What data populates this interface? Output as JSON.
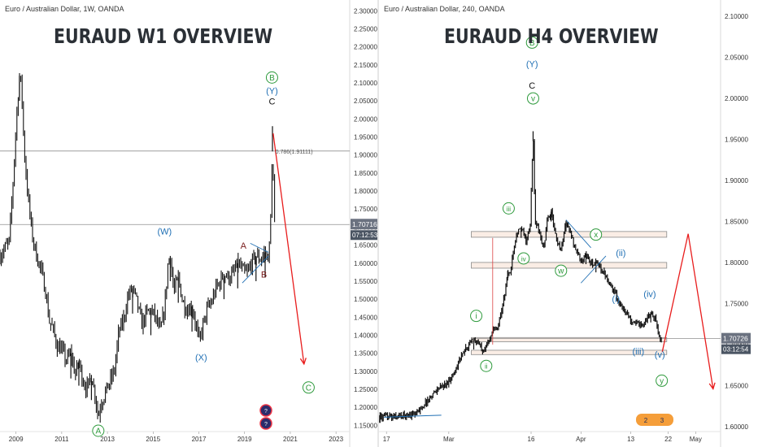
{
  "charts": [
    {
      "source": "Euro / Australian Dollar, 1W, OANDA",
      "heading": "EURAUD W1 OVERVIEW",
      "price_tag": "1.70716",
      "countdown": "07:12:53",
      "fib_label": "0.786(1.91111)",
      "corner_badges": [
        "?",
        "?"
      ]
    },
    {
      "source": "Euro / Australian Dollar, 240, OANDA",
      "heading": "EURAUD H4 OVERVIEW",
      "price_tag": "1.70726",
      "countdown": "03:12:54",
      "corner_badges": [
        "2",
        "3"
      ]
    }
  ],
  "chart_data": [
    {
      "type": "line",
      "title": "Euro / Australian Dollar, 1W, OANDA",
      "xlabel": "",
      "ylabel": "",
      "x_ticks": [
        "2009",
        "2011",
        "2013",
        "2015",
        "2017",
        "2019",
        "2021",
        "2023"
      ],
      "y_ticks": [
        2.3,
        2.25,
        2.2,
        2.15,
        2.1,
        2.05,
        2.0,
        1.95,
        1.9,
        1.85,
        1.8,
        1.75,
        1.7,
        1.65,
        1.6,
        1.55,
        1.5,
        1.45,
        1.4,
        1.35,
        1.3,
        1.25,
        1.2,
        1.15
      ],
      "xlim": [
        2008.3,
        2023.6
      ],
      "ylim": [
        1.135,
        2.312
      ],
      "grid": false,
      "series": [
        {
          "values": [
            [
              2008.3,
              1.62
            ],
            [
              2008.5,
              1.64
            ],
            [
              2008.7,
              1.66
            ],
            [
              2008.85,
              1.8
            ],
            [
              2009.0,
              1.98
            ],
            [
              2009.15,
              2.12
            ],
            [
              2009.25,
              2.08
            ],
            [
              2009.35,
              1.92
            ],
            [
              2009.5,
              1.8
            ],
            [
              2009.7,
              1.68
            ],
            [
              2009.9,
              1.62
            ],
            [
              2010.1,
              1.58
            ],
            [
              2010.3,
              1.52
            ],
            [
              2010.45,
              1.44
            ],
            [
              2010.6,
              1.42
            ],
            [
              2010.8,
              1.37
            ],
            [
              2011.0,
              1.36
            ],
            [
              2011.2,
              1.33
            ],
            [
              2011.4,
              1.35
            ],
            [
              2011.6,
              1.29
            ],
            [
              2011.75,
              1.33
            ],
            [
              2011.9,
              1.28
            ],
            [
              2012.1,
              1.25
            ],
            [
              2012.3,
              1.29
            ],
            [
              2012.5,
              1.22
            ],
            [
              2012.6,
              1.17
            ],
            [
              2012.7,
              1.21
            ],
            [
              2012.9,
              1.24
            ],
            [
              2013.1,
              1.27
            ],
            [
              2013.3,
              1.3
            ],
            [
              2013.5,
              1.41
            ],
            [
              2013.7,
              1.44
            ],
            [
              2013.9,
              1.51
            ],
            [
              2014.1,
              1.53
            ],
            [
              2014.3,
              1.49
            ],
            [
              2014.5,
              1.43
            ],
            [
              2014.7,
              1.46
            ],
            [
              2014.9,
              1.47
            ],
            [
              2015.1,
              1.45
            ],
            [
              2015.3,
              1.41
            ],
            [
              2015.5,
              1.47
            ],
            [
              2015.65,
              1.6
            ],
            [
              2015.75,
              1.62
            ],
            [
              2015.9,
              1.52
            ],
            [
              2016.1,
              1.56
            ],
            [
              2016.3,
              1.49
            ],
            [
              2016.5,
              1.47
            ],
            [
              2016.7,
              1.48
            ],
            [
              2016.9,
              1.42
            ],
            [
              2017.0,
              1.38
            ],
            [
              2017.15,
              1.42
            ],
            [
              2017.35,
              1.47
            ],
            [
              2017.55,
              1.49
            ],
            [
              2017.75,
              1.53
            ],
            [
              2017.95,
              1.55
            ],
            [
              2018.1,
              1.57
            ],
            [
              2018.3,
              1.56
            ],
            [
              2018.5,
              1.57
            ],
            [
              2018.7,
              1.6
            ],
            [
              2018.9,
              1.58
            ],
            [
              2019.1,
              1.57
            ],
            [
              2019.3,
              1.6
            ],
            [
              2019.5,
              1.62
            ],
            [
              2019.7,
              1.61
            ],
            [
              2019.9,
              1.63
            ],
            [
              2020.0,
              1.61
            ],
            [
              2020.08,
              1.64
            ],
            [
              2020.13,
              1.71
            ],
            [
              2020.18,
              1.78
            ],
            [
              2020.22,
              1.98
            ],
            [
              2020.27,
              1.76
            ],
            [
              2020.32,
              1.71
            ]
          ]
        }
      ],
      "hlines": [
        1.9111,
        1.70716
      ],
      "annotations": [
        {
          "text": "A",
          "x": 2012.6,
          "y": 1.135,
          "style": "green-circle"
        },
        {
          "text": "(W)",
          "x": 2015.5,
          "y": 1.68,
          "style": "blue"
        },
        {
          "text": "(X)",
          "x": 2017.1,
          "y": 1.33,
          "style": "blue"
        },
        {
          "text": "A",
          "x": 2018.95,
          "y": 1.64,
          "style": "maroon"
        },
        {
          "text": "B",
          "x": 2019.85,
          "y": 1.56,
          "style": "maroon"
        },
        {
          "text": "B",
          "x": 2020.2,
          "y": 2.115,
          "style": "green-circle"
        },
        {
          "text": "(Y)",
          "x": 2020.2,
          "y": 2.07,
          "style": "blue"
        },
        {
          "text": "C",
          "x": 2020.2,
          "y": 2.04,
          "style": "black"
        },
        {
          "text": "C",
          "x": 2021.8,
          "y": 1.255,
          "style": "green-circle"
        }
      ],
      "projection": [
        [
          2020.25,
          1.96
        ],
        [
          2021.6,
          1.32
        ]
      ]
    },
    {
      "type": "line",
      "title": "Euro / Australian Dollar, 240, OANDA",
      "xlabel": "",
      "ylabel": "",
      "x_ticks": [
        "17",
        "Mar",
        "16",
        "Apr",
        "13",
        "22",
        "May"
      ],
      "y_ticks": [
        2.1,
        2.05,
        2.0,
        1.95,
        1.9,
        1.85,
        1.8,
        1.75,
        1.7,
        1.65,
        1.6
      ],
      "xlim": [
        15.5,
        84
      ],
      "ylim": [
        1.595,
        2.11
      ],
      "grid": false,
      "series": [
        {
          "values": [
            [
              15.5,
              1.611
            ],
            [
              18,
              1.612
            ],
            [
              20,
              1.613
            ],
            [
              23,
              1.616
            ],
            [
              25,
              1.63
            ],
            [
              27,
              1.645
            ],
            [
              29,
              1.652
            ],
            [
              30.5,
              1.665
            ],
            [
              31.5,
              1.68
            ],
            [
              32.5,
              1.69
            ],
            [
              33.5,
              1.7
            ],
            [
              34.5,
              1.706
            ],
            [
              35.3,
              1.702
            ],
            [
              36.3,
              1.694
            ],
            [
              37.3,
              1.701
            ],
            [
              38.3,
              1.717
            ],
            [
              39.3,
              1.72
            ],
            [
              40,
              1.74
            ],
            [
              40.7,
              1.76
            ],
            [
              41.3,
              1.79
            ],
            [
              41.7,
              1.782
            ],
            [
              42.3,
              1.81
            ],
            [
              43,
              1.835
            ],
            [
              44,
              1.842
            ],
            [
              45,
              1.827
            ],
            [
              45.8,
              1.84
            ],
            [
              46.4,
              1.96
            ],
            [
              46.8,
              1.85
            ],
            [
              47.5,
              1.84
            ],
            [
              48.5,
              1.816
            ],
            [
              49.3,
              1.853
            ],
            [
              50,
              1.862
            ],
            [
              51,
              1.83
            ],
            [
              52,
              1.815
            ],
            [
              53,
              1.85
            ],
            [
              54,
              1.833
            ],
            [
              55,
              1.816
            ],
            [
              56,
              1.802
            ],
            [
              57,
              1.81
            ],
            [
              58,
              1.798
            ],
            [
              59,
              1.8
            ],
            [
              60,
              1.792
            ],
            [
              61,
              1.785
            ],
            [
              62,
              1.772
            ],
            [
              63,
              1.76
            ],
            [
              64,
              1.748
            ],
            [
              65,
              1.74
            ],
            [
              66,
              1.73
            ],
            [
              67,
              1.727
            ],
            [
              68,
              1.721
            ],
            [
              69,
              1.73
            ],
            [
              70,
              1.739
            ],
            [
              71,
              1.731
            ],
            [
              71.8,
              1.705
            ],
            [
              72.3,
              1.707
            ]
          ]
        }
      ],
      "zones": [
        [
          1.8378,
          1.8308
        ],
        [
          1.8001,
          1.7931
        ],
        [
          1.7086,
          1.7035
        ],
        [
          1.6931,
          1.6878
        ]
      ],
      "hlines": [
        1.70726
      ],
      "annotations": [
        {
          "text": "i",
          "x": 35,
          "y": 1.735,
          "style": "green-circle"
        },
        {
          "text": "ii",
          "x": 37,
          "y": 1.674,
          "style": "green-circle"
        },
        {
          "text": "iii",
          "x": 41.5,
          "y": 1.866,
          "style": "green-circle"
        },
        {
          "text": "iv",
          "x": 44.5,
          "y": 1.805,
          "style": "green-circle"
        },
        {
          "text": "v",
          "x": 46.4,
          "y": 2.0,
          "style": "green-circle"
        },
        {
          "text": "w",
          "x": 52,
          "y": 1.79,
          "style": "green-circle"
        },
        {
          "text": "x",
          "x": 59,
          "y": 1.834,
          "style": "green-circle"
        },
        {
          "text": "(i)",
          "x": 63,
          "y": 1.752,
          "style": "blue"
        },
        {
          "text": "(ii)",
          "x": 64,
          "y": 1.808,
          "style": "blue"
        },
        {
          "text": "(iii)",
          "x": 67.5,
          "y": 1.688,
          "style": "blue"
        },
        {
          "text": "(iv)",
          "x": 69.8,
          "y": 1.758,
          "style": "blue"
        },
        {
          "text": "(v)",
          "x": 71.8,
          "y": 1.684,
          "style": "blue"
        },
        {
          "text": "y",
          "x": 72.2,
          "y": 1.656,
          "style": "green-circle"
        },
        {
          "text": "B",
          "x": 46.2,
          "y": 2.068,
          "style": "green-circle"
        },
        {
          "text": "(Y)",
          "x": 46.2,
          "y": 2.038,
          "style": "blue"
        },
        {
          "text": "C",
          "x": 46.2,
          "y": 2.012,
          "style": "black"
        }
      ],
      "projection": [
        [
          72.3,
          1.691
        ],
        [
          77.5,
          1.835
        ],
        [
          82.5,
          1.646
        ]
      ]
    }
  ]
}
